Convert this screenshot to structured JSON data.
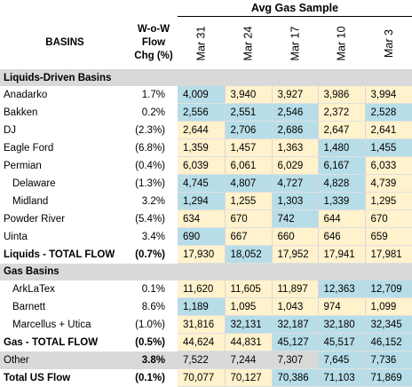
{
  "header": {
    "group_label": "Avg Gas Sample",
    "basins_label": "BASINS",
    "chg_label": "W-o-W Flow Chg (%)",
    "dates": [
      "Mar 31",
      "Mar 24",
      "Mar 17",
      "Mar 10",
      "Mar 3"
    ]
  },
  "colors": {
    "blue": "#b7dde8",
    "cream": "#fff2cc",
    "grey": "#d9d9d9"
  },
  "rows": [
    {
      "type": "section",
      "label": "Liquids-Driven Basins"
    },
    {
      "type": "data",
      "basin": "Anadarko",
      "chg": "1.7%",
      "values": [
        "4,009",
        "3,940",
        "3,927",
        "3,986",
        "3,994"
      ],
      "shade": [
        "blue",
        "cream",
        "cream",
        "cream",
        "cream"
      ]
    },
    {
      "type": "data",
      "basin": "Bakken",
      "chg": "0.2%",
      "values": [
        "2,556",
        "2,551",
        "2,546",
        "2,372",
        "2,528"
      ],
      "shade": [
        "blue",
        "blue",
        "blue",
        "cream",
        "blue"
      ]
    },
    {
      "type": "data",
      "basin": "DJ",
      "chg": "(2.3%)",
      "values": [
        "2,644",
        "2,706",
        "2,686",
        "2,647",
        "2,641"
      ],
      "shade": [
        "cream",
        "blue",
        "blue",
        "cream",
        "cream"
      ]
    },
    {
      "type": "data",
      "basin": "Eagle Ford",
      "chg": "(6.8%)",
      "values": [
        "1,359",
        "1,457",
        "1,363",
        "1,480",
        "1,455"
      ],
      "shade": [
        "cream",
        "cream",
        "cream",
        "blue",
        "blue"
      ]
    },
    {
      "type": "data",
      "basin": "Permian",
      "chg": "(0.4%)",
      "values": [
        "6,039",
        "6,061",
        "6,029",
        "6,167",
        "6,033"
      ],
      "shade": [
        "cream",
        "cream",
        "cream",
        "blue",
        "cream"
      ]
    },
    {
      "type": "data",
      "basin": "Delaware",
      "indent": true,
      "chg": "(1.3%)",
      "values": [
        "4,745",
        "4,807",
        "4,727",
        "4,828",
        "4,739"
      ],
      "shade": [
        "blue",
        "blue",
        "blue",
        "blue",
        "cream"
      ]
    },
    {
      "type": "data",
      "basin": "Midland",
      "indent": true,
      "chg": "3.2%",
      "values": [
        "1,294",
        "1,255",
        "1,303",
        "1,339",
        "1,295"
      ],
      "shade": [
        "blue",
        "cream",
        "blue",
        "blue",
        "cream"
      ]
    },
    {
      "type": "data",
      "basin": "Powder River",
      "chg": "(5.4%)",
      "values": [
        "634",
        "670",
        "742",
        "644",
        "670"
      ],
      "shade": [
        "cream",
        "cream",
        "blue",
        "cream",
        "cream"
      ]
    },
    {
      "type": "data",
      "basin": "Uinta",
      "chg": "3.4%",
      "values": [
        "690",
        "667",
        "660",
        "646",
        "659"
      ],
      "shade": [
        "blue",
        "cream",
        "cream",
        "cream",
        "cream"
      ]
    },
    {
      "type": "total",
      "basin": "Liquids - TOTAL FLOW",
      "chg": "(0.7%)",
      "values": [
        "17,930",
        "18,052",
        "17,952",
        "17,941",
        "17,981"
      ],
      "shade": [
        "cream",
        "blue",
        "cream",
        "cream",
        "cream"
      ]
    },
    {
      "type": "section",
      "label": "Gas Basins"
    },
    {
      "type": "data",
      "basin": "ArkLaTex",
      "indent": true,
      "chg": "0.1%",
      "values": [
        "11,620",
        "11,605",
        "11,897",
        "12,363",
        "12,709"
      ],
      "shade": [
        "cream",
        "cream",
        "cream",
        "blue",
        "blue"
      ]
    },
    {
      "type": "data",
      "basin": "Barnett",
      "indent": true,
      "chg": "8.6%",
      "values": [
        "1,189",
        "1,095",
        "1,043",
        "974",
        "1,099"
      ],
      "shade": [
        "blue",
        "cream",
        "cream",
        "cream",
        "cream"
      ]
    },
    {
      "type": "data",
      "basin": "Marcellus + Utica",
      "indent": true,
      "chg": "(1.0%)",
      "values": [
        "31,816",
        "32,131",
        "32,187",
        "32,180",
        "32,345"
      ],
      "shade": [
        "cream",
        "blue",
        "blue",
        "blue",
        "blue"
      ]
    },
    {
      "type": "total",
      "basin": "Gas - TOTAL FLOW",
      "chg": "(0.5%)",
      "values": [
        "44,624",
        "44,831",
        "45,127",
        "45,517",
        "46,152"
      ],
      "shade": [
        "cream",
        "cream",
        "blue",
        "blue",
        "blue"
      ]
    },
    {
      "type": "other",
      "basin": "Other",
      "chg": "3.8%",
      "values": [
        "7,522",
        "7,244",
        "7,307",
        "7,645",
        "7,736"
      ],
      "shade": [
        "grey",
        "grey",
        "grey",
        "blue",
        "blue"
      ]
    },
    {
      "type": "total",
      "basin": "Total US Flow",
      "chg": "(0.1%)",
      "values": [
        "70,077",
        "70,127",
        "70,386",
        "71,103",
        "71,869"
      ],
      "shade": [
        "cream",
        "cream",
        "blue",
        "blue",
        "blue"
      ]
    }
  ]
}
